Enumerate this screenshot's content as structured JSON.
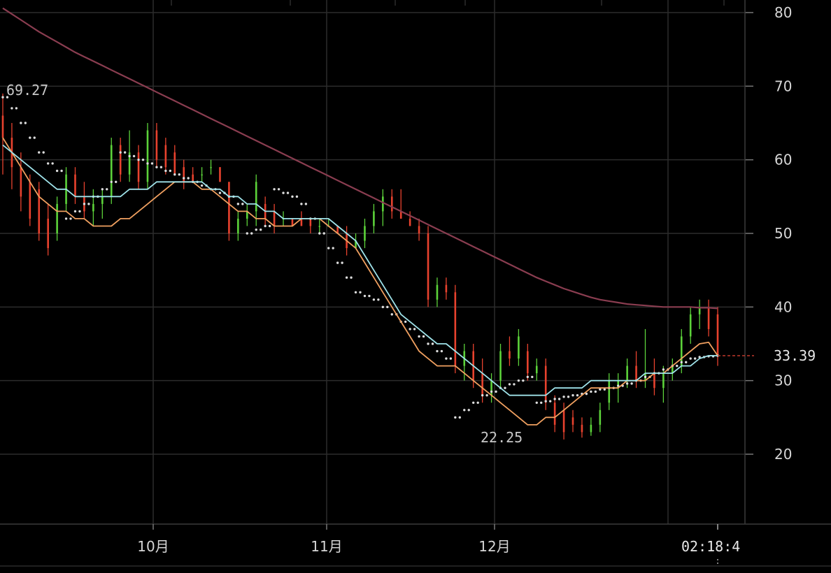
{
  "chart_data": {
    "type": "candlestick",
    "title": "",
    "xlabel": "",
    "ylabel": "",
    "ylim": [
      13,
      81
    ],
    "y_ticks": [
      80,
      70,
      60,
      50,
      40,
      30,
      20
    ],
    "x_ticks": [
      "10月",
      "11月",
      "12月"
    ],
    "grid": true,
    "legend": "none",
    "last_price": "33.39",
    "current_time": "02:18:4",
    "annotations": {
      "high": "69.27",
      "low": "22.25"
    },
    "colors": {
      "up": "#5cd23a",
      "down": "#e8422e",
      "ma_fast": "#f0a060",
      "ma_mid": "#9fe3ea",
      "ma_slow": "#8a3d50",
      "sar": "#dcdcdc",
      "grid": "#2c2c2c",
      "price_line": "#c0392b"
    },
    "series": [
      {
        "name": "",
        "kind": "ma_fast",
        "color": "#f0a060",
        "values": [
          63,
          61,
          59,
          57,
          55,
          54,
          53,
          53,
          52,
          52,
          51,
          51,
          51,
          52,
          52,
          53,
          54,
          55,
          56,
          57,
          57,
          57,
          56,
          56,
          55,
          54,
          53,
          53,
          52,
          52,
          51,
          51,
          51,
          52,
          52,
          52,
          51,
          50,
          49,
          48,
          46,
          44,
          42,
          40,
          38,
          36,
          34,
          33,
          32,
          32,
          32,
          31,
          30,
          29,
          28,
          27,
          26,
          25,
          24,
          24,
          25,
          25,
          26,
          27,
          28,
          29,
          29,
          29,
          29,
          30,
          30,
          30,
          31,
          31,
          32,
          33,
          34,
          35,
          35.2,
          33.39
        ]
      },
      {
        "name": "",
        "kind": "ma_mid",
        "color": "#9fe3ea",
        "values": [
          62,
          61,
          60,
          59,
          58,
          57,
          56,
          56,
          55,
          55,
          55,
          55,
          55,
          55,
          56,
          56,
          56,
          57,
          57,
          57,
          57,
          57,
          57,
          56,
          56,
          55,
          55,
          54,
          54,
          53,
          53,
          52,
          52,
          52,
          52,
          52,
          52,
          51,
          50,
          49,
          47,
          45,
          43,
          41,
          39,
          38,
          37,
          36,
          35,
          35,
          34,
          33,
          32,
          31,
          30,
          29,
          28,
          28,
          28,
          28,
          28,
          29,
          29,
          29,
          29,
          30,
          30,
          30,
          30,
          30,
          30,
          31,
          31,
          31,
          31,
          32,
          32,
          33,
          33.4,
          33.39
        ]
      },
      {
        "name": "",
        "kind": "ma_slow",
        "color": "#8a3d50",
        "values": [
          80.6,
          79.8,
          79,
          78.2,
          77.4,
          76.7,
          76,
          75.3,
          74.6,
          74,
          73.4,
          72.8,
          72.2,
          71.6,
          71,
          70.4,
          69.8,
          69.2,
          68.6,
          68,
          67.4,
          66.8,
          66.2,
          65.6,
          65,
          64.4,
          63.8,
          63.2,
          62.6,
          62,
          61.4,
          60.8,
          60.2,
          59.6,
          59,
          58.4,
          57.8,
          57.2,
          56.6,
          56,
          55.4,
          54.8,
          54.2,
          53.6,
          53,
          52.4,
          51.8,
          51.2,
          50.6,
          50,
          49.4,
          48.8,
          48.2,
          47.6,
          47,
          46.4,
          45.8,
          45.2,
          44.6,
          44,
          43.5,
          43,
          42.5,
          42.1,
          41.7,
          41.3,
          41,
          40.8,
          40.6,
          40.4,
          40.3,
          40.2,
          40.1,
          40,
          40,
          40,
          40,
          39.9,
          39.9,
          39.8
        ]
      },
      {
        "name": "",
        "kind": "sar",
        "color": "#dcdcdc",
        "values": [
          68.5,
          67,
          65,
          63,
          61,
          59.5,
          58.5,
          52,
          53,
          54,
          55,
          56,
          57,
          61,
          60.5,
          60,
          59.5,
          59,
          58.5,
          58,
          57.5,
          57,
          56.5,
          56,
          55.5,
          55,
          54,
          50,
          50.5,
          51,
          56,
          55.5,
          55,
          54,
          52,
          50,
          48,
          46,
          44,
          42,
          41.5,
          41,
          40,
          39,
          38,
          37,
          36,
          35,
          34,
          33,
          25,
          26,
          27,
          28,
          28.5,
          29,
          29.5,
          30,
          30.5,
          27,
          27.2,
          27.5,
          27.8,
          28,
          28.2,
          28.5,
          28.8,
          29,
          29.3,
          29.6,
          30,
          30.5,
          31,
          31.5,
          32,
          32.5,
          33,
          33.2,
          33.3,
          33.39
        ]
      }
    ],
    "candles": [
      {
        "o": 66,
        "h": 69,
        "l": 58,
        "c": 63
      },
      {
        "o": 63,
        "h": 65,
        "l": 56,
        "c": 59
      },
      {
        "o": 59,
        "h": 61,
        "l": 53,
        "c": 55
      },
      {
        "o": 57,
        "h": 58,
        "l": 51,
        "c": 52
      },
      {
        "o": 56,
        "h": 57,
        "l": 49,
        "c": 50
      },
      {
        "o": 52,
        "h": 54,
        "l": 47,
        "c": 48
      },
      {
        "o": 50,
        "h": 55,
        "l": 49,
        "c": 54
      },
      {
        "o": 54,
        "h": 59,
        "l": 53,
        "c": 58
      },
      {
        "o": 58,
        "h": 59,
        "l": 54,
        "c": 55
      },
      {
        "o": 55,
        "h": 57,
        "l": 52,
        "c": 53
      },
      {
        "o": 53,
        "h": 56,
        "l": 51,
        "c": 54
      },
      {
        "o": 54,
        "h": 56,
        "l": 52,
        "c": 55
      },
      {
        "o": 55,
        "h": 63,
        "l": 54,
        "c": 62
      },
      {
        "o": 62,
        "h": 63,
        "l": 57,
        "c": 58
      },
      {
        "o": 58,
        "h": 64,
        "l": 57,
        "c": 61
      },
      {
        "o": 61,
        "h": 62,
        "l": 56,
        "c": 57
      },
      {
        "o": 57,
        "h": 65,
        "l": 56,
        "c": 64
      },
      {
        "o": 64,
        "h": 65,
        "l": 59,
        "c": 60
      },
      {
        "o": 62,
        "h": 63,
        "l": 58,
        "c": 59
      },
      {
        "o": 61,
        "h": 62,
        "l": 58,
        "c": 58
      },
      {
        "o": 59,
        "h": 60,
        "l": 56,
        "c": 57
      },
      {
        "o": 58,
        "h": 59,
        "l": 57,
        "c": 57
      },
      {
        "o": 58,
        "h": 59,
        "l": 57,
        "c": 58
      },
      {
        "o": 59,
        "h": 60,
        "l": 58,
        "c": 59
      },
      {
        "o": 59,
        "h": 59,
        "l": 57,
        "c": 57
      },
      {
        "o": 57,
        "h": 57,
        "l": 49,
        "c": 50
      },
      {
        "o": 50,
        "h": 53,
        "l": 49,
        "c": 52
      },
      {
        "o": 52,
        "h": 54,
        "l": 51,
        "c": 53
      },
      {
        "o": 53,
        "h": 58,
        "l": 51,
        "c": 57
      },
      {
        "o": 54,
        "h": 55,
        "l": 51,
        "c": 52
      },
      {
        "o": 53,
        "h": 54,
        "l": 50,
        "c": 51
      },
      {
        "o": 52,
        "h": 53,
        "l": 51,
        "c": 52
      },
      {
        "o": 52,
        "h": 52,
        "l": 51,
        "c": 51
      },
      {
        "o": 52,
        "h": 53,
        "l": 51,
        "c": 51
      },
      {
        "o": 52,
        "h": 52,
        "l": 50,
        "c": 51
      },
      {
        "o": 51,
        "h": 52,
        "l": 50,
        "c": 51
      },
      {
        "o": 51,
        "h": 52,
        "l": 51,
        "c": 51
      },
      {
        "o": 51,
        "h": 51,
        "l": 50,
        "c": 50
      },
      {
        "o": 50,
        "h": 51,
        "l": 47,
        "c": 48
      },
      {
        "o": 48,
        "h": 50,
        "l": 48,
        "c": 49
      },
      {
        "o": 49,
        "h": 52,
        "l": 48,
        "c": 51
      },
      {
        "o": 51,
        "h": 54,
        "l": 50,
        "c": 53
      },
      {
        "o": 53,
        "h": 56,
        "l": 51,
        "c": 55
      },
      {
        "o": 55,
        "h": 56,
        "l": 52,
        "c": 53
      },
      {
        "o": 53,
        "h": 56,
        "l": 52,
        "c": 52
      },
      {
        "o": 52,
        "h": 53,
        "l": 51,
        "c": 51
      },
      {
        "o": 51,
        "h": 52,
        "l": 49,
        "c": 50
      },
      {
        "o": 50,
        "h": 51,
        "l": 40,
        "c": 41
      },
      {
        "o": 41,
        "h": 44,
        "l": 40,
        "c": 43
      },
      {
        "o": 43,
        "h": 44,
        "l": 41,
        "c": 42
      },
      {
        "o": 42,
        "h": 43,
        "l": 31,
        "c": 32
      },
      {
        "o": 32,
        "h": 35,
        "l": 30,
        "c": 34
      },
      {
        "o": 34,
        "h": 35,
        "l": 29,
        "c": 30
      },
      {
        "o": 31,
        "h": 33,
        "l": 27,
        "c": 28
      },
      {
        "o": 28,
        "h": 31,
        "l": 27,
        "c": 30
      },
      {
        "o": 30,
        "h": 35,
        "l": 29,
        "c": 34
      },
      {
        "o": 34,
        "h": 36,
        "l": 32,
        "c": 33
      },
      {
        "o": 33,
        "h": 37,
        "l": 32,
        "c": 36
      },
      {
        "o": 34,
        "h": 35,
        "l": 30,
        "c": 31
      },
      {
        "o": 31,
        "h": 33,
        "l": 30,
        "c": 32
      },
      {
        "o": 32,
        "h": 33,
        "l": 26,
        "c": 27
      },
      {
        "o": 27,
        "h": 28,
        "l": 23,
        "c": 24
      },
      {
        "o": 26,
        "h": 27,
        "l": 22,
        "c": 23
      },
      {
        "o": 25,
        "h": 26,
        "l": 23,
        "c": 24
      },
      {
        "o": 24,
        "h": 25,
        "l": 22.25,
        "c": 23
      },
      {
        "o": 23,
        "h": 25,
        "l": 22.5,
        "c": 24
      },
      {
        "o": 24,
        "h": 27,
        "l": 23,
        "c": 26
      },
      {
        "o": 27,
        "h": 31,
        "l": 26,
        "c": 30
      },
      {
        "o": 29,
        "h": 31,
        "l": 27,
        "c": 30
      },
      {
        "o": 30,
        "h": 33,
        "l": 29,
        "c": 32
      },
      {
        "o": 32,
        "h": 34,
        "l": 29,
        "c": 30
      },
      {
        "o": 30,
        "h": 37,
        "l": 29,
        "c": 31
      },
      {
        "o": 31,
        "h": 33,
        "l": 28,
        "c": 29
      },
      {
        "o": 29,
        "h": 32,
        "l": 27,
        "c": 31
      },
      {
        "o": 31,
        "h": 33,
        "l": 30,
        "c": 32
      },
      {
        "o": 32,
        "h": 37,
        "l": 31,
        "c": 36
      },
      {
        "o": 36,
        "h": 40,
        "l": 35,
        "c": 39
      },
      {
        "o": 39,
        "h": 41,
        "l": 37,
        "c": 40
      },
      {
        "o": 40,
        "h": 41,
        "l": 36,
        "c": 37
      },
      {
        "o": 39,
        "h": 40,
        "l": 32,
        "c": 33.39
      }
    ]
  }
}
